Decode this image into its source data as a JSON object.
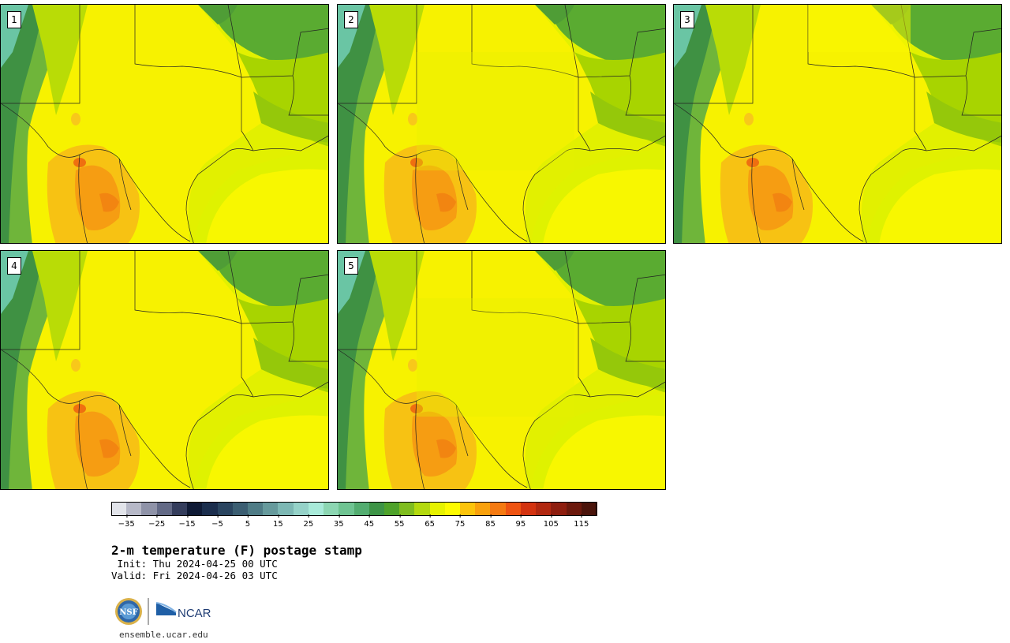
{
  "title": "2-m temperature (F) postage stamp",
  "init": " Init: Thu 2024-04-25 00 UTC",
  "valid": "Valid: Fri 2024-04-26 03 UTC",
  "website": "ensemble.ucar.edu",
  "members": [
    {
      "label": "1"
    },
    {
      "label": "2"
    },
    {
      "label": "3"
    },
    {
      "label": "4"
    },
    {
      "label": "5"
    }
  ],
  "colorbar": {
    "bin_colors": [
      "#e2e4ea",
      "#b7b9c8",
      "#8f93a8",
      "#636a86",
      "#343d5c",
      "#0f1a35",
      "#1b2e4d",
      "#2a4560",
      "#3b5e72",
      "#4f7c86",
      "#669a9c",
      "#7db8b4",
      "#95d2c8",
      "#a8ead9",
      "#8cd6b2",
      "#6fc492",
      "#53ad70",
      "#3d9446",
      "#4ea22a",
      "#7fbd1f",
      "#b3d90e",
      "#e6f200",
      "#fdfb00",
      "#fcc40b",
      "#f9a10d",
      "#f57a11",
      "#ee5311",
      "#d33310",
      "#b12810",
      "#8e1e0f",
      "#6c190d",
      "#4b140b"
    ],
    "tick_labels": [
      "−35",
      "−25",
      "−15",
      "−5",
      "5",
      "15",
      "25",
      "35",
      "45",
      "55",
      "65",
      "75",
      "85",
      "95",
      "105",
      "115"
    ],
    "min": -40,
    "max": 120
  },
  "logos": {
    "nsf": "NSF",
    "ncar": "NCAR"
  }
}
